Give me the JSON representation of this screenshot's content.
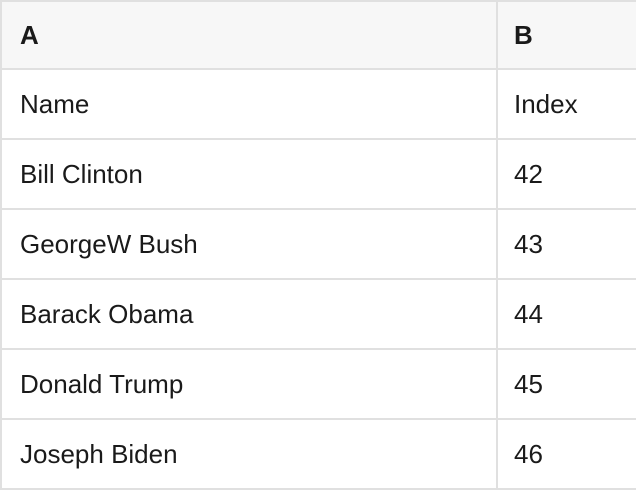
{
  "table": {
    "column_headers": [
      "A",
      "B"
    ],
    "rows": [
      {
        "a": "Name",
        "b": "Index"
      },
      {
        "a": "Bill Clinton",
        "b": "42"
      },
      {
        "a": "GeorgeW Bush",
        "b": "43"
      },
      {
        "a": "Barack Obama",
        "b": "44"
      },
      {
        "a": "Donald Trump",
        "b": "45"
      },
      {
        "a": "Joseph Biden",
        "b": "46"
      }
    ]
  },
  "colors": {
    "header_background": "#f7f7f7",
    "row_background": "#ffffff",
    "grid_border": "#e0e0e0",
    "text": "#1a1a1a"
  }
}
